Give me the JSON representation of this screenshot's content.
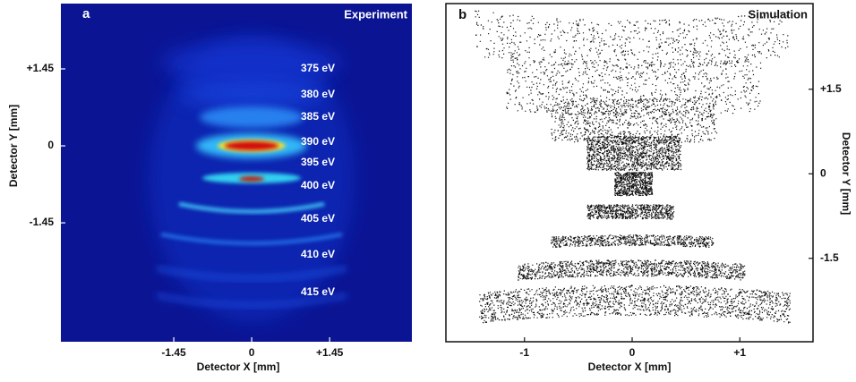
{
  "chart_data": [
    {
      "type": "image",
      "panel": "a",
      "title": "Experiment",
      "xlabel": "Detector X [mm]",
      "ylabel": "Detector Y [mm]",
      "xlim": [
        -3.55,
        2.98
      ],
      "ylim": [
        -3.69,
        2.68
      ],
      "xticks": [
        {
          "value": -1.45,
          "label": "-1.45"
        },
        0,
        {
          "value": 1.45,
          "label": "+1.45"
        }
      ],
      "yticks": [
        {
          "value": 1.45,
          "label": "+1.45"
        },
        0,
        {
          "value": -1.45,
          "label": "-1.45"
        }
      ],
      "annotations": [
        "375 eV",
        "380 eV",
        "385 eV",
        "390 eV",
        "395 eV",
        "400 eV",
        "405 eV",
        "410 eV",
        "415 eV"
      ]
    },
    {
      "type": "image",
      "panel": "b",
      "title": "Simulation",
      "xlabel": "Detector X [mm]",
      "ylabel": "Detector Y [mm]",
      "xlim": [
        -1.73,
        1.68
      ],
      "ylim": [
        -2.98,
        3.02
      ],
      "xticks": [
        -1,
        0,
        {
          "value": 1,
          "label": "+1"
        }
      ],
      "yticks": [
        {
          "value": 1.5,
          "label": "+1.5"
        },
        0,
        {
          "value": -1.5,
          "label": "-1.5"
        }
      ]
    }
  ]
}
